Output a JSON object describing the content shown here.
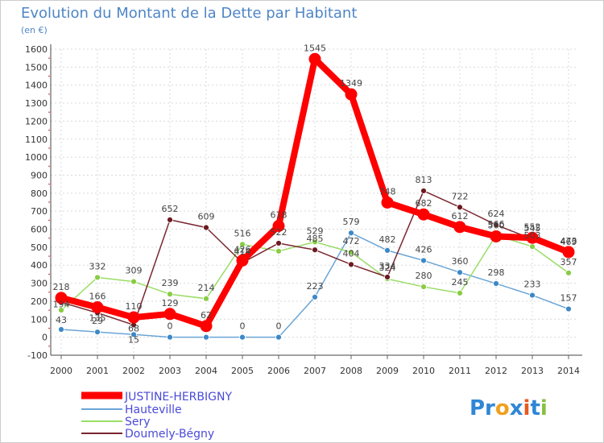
{
  "chart_data": {
    "type": "line",
    "title": "Evolution du Montant de la Dette par Habitant",
    "subtitle": "(en €)",
    "x": [
      "2000",
      "2001",
      "2002",
      "2003",
      "2004",
      "2005",
      "2006",
      "2007",
      "2008",
      "2009",
      "2010",
      "2011",
      "2012",
      "2013",
      "2014"
    ],
    "ylim": [
      -100,
      1600
    ],
    "yticks": [
      -100,
      0,
      100,
      200,
      300,
      400,
      500,
      600,
      700,
      800,
      900,
      1000,
      1100,
      1200,
      1300,
      1400,
      1500,
      1600
    ],
    "series": [
      {
        "name": "JUSTINE-HERBIGNY",
        "color": "#ff0000",
        "marker_color": "#ff0000",
        "values": [
          218,
          166,
          110,
          129,
          62,
          426,
          618,
          1545,
          1349,
          748,
          682,
          612,
          560,
          552,
          473
        ]
      },
      {
        "name": "Hauteville",
        "color": "#6aa5d6",
        "marker_color": "#3c88c8",
        "values": [
          43,
          29,
          15,
          0,
          0,
          0,
          0,
          223,
          579,
          482,
          426,
          360,
          298,
          233,
          157
        ]
      },
      {
        "name": "Sery",
        "color": "#99dd66",
        "marker_color": "#88cc44",
        "values": [
          150,
          332,
          309,
          239,
          214,
          516,
          478,
          529,
          472,
          324,
          280,
          245,
          566,
          503,
          357
        ]
      },
      {
        "name": "Doumely-Bégny",
        "color": "#7a2630",
        "marker_color": "#6a1a20",
        "values": [
          194,
          135,
          68,
          652,
          609,
          414,
          522,
          485,
          404,
          334,
          813,
          722,
          624,
          545,
          469
        ]
      }
    ],
    "point_labels": [
      {
        "series": 0,
        "i": 0,
        "text": "218"
      },
      {
        "series": 0,
        "i": 1,
        "text": "166"
      },
      {
        "series": 0,
        "i": 2,
        "text": "110"
      },
      {
        "series": 0,
        "i": 3,
        "text": "129"
      },
      {
        "series": 0,
        "i": 4,
        "text": "62"
      },
      {
        "series": 0,
        "i": 5,
        "text": "426"
      },
      {
        "series": 0,
        "i": 6,
        "text": "618"
      },
      {
        "series": 0,
        "i": 7,
        "text": "1545"
      },
      {
        "series": 0,
        "i": 8,
        "text": "1349"
      },
      {
        "series": 0,
        "i": 9,
        "text": "748"
      },
      {
        "series": 0,
        "i": 10,
        "text": "682"
      },
      {
        "series": 0,
        "i": 11,
        "text": "612"
      },
      {
        "series": 0,
        "i": 12,
        "text": "560"
      },
      {
        "series": 0,
        "i": 13,
        "text": "552"
      },
      {
        "series": 0,
        "i": 14,
        "text": "473"
      },
      {
        "series": 1,
        "i": 0,
        "text": "43"
      },
      {
        "series": 1,
        "i": 1,
        "text": "29"
      },
      {
        "series": 1,
        "i": 2,
        "text": "15"
      },
      {
        "series": 1,
        "i": 3,
        "text": "0"
      },
      {
        "series": 1,
        "i": 5,
        "text": "0"
      },
      {
        "series": 1,
        "i": 6,
        "text": "0"
      },
      {
        "series": 1,
        "i": 7,
        "text": "223"
      },
      {
        "series": 1,
        "i": 8,
        "text": "579"
      },
      {
        "series": 1,
        "i": 9,
        "text": "482"
      },
      {
        "series": 1,
        "i": 10,
        "text": "426"
      },
      {
        "series": 1,
        "i": 11,
        "text": "360"
      },
      {
        "series": 1,
        "i": 12,
        "text": "298"
      },
      {
        "series": 1,
        "i": 13,
        "text": "233"
      },
      {
        "series": 1,
        "i": 14,
        "text": "157"
      },
      {
        "series": 2,
        "i": 1,
        "text": "332"
      },
      {
        "series": 2,
        "i": 2,
        "text": "309"
      },
      {
        "series": 2,
        "i": 3,
        "text": "239"
      },
      {
        "series": 2,
        "i": 4,
        "text": "214"
      },
      {
        "series": 2,
        "i": 5,
        "text": "516"
      },
      {
        "series": 2,
        "i": 7,
        "text": "529"
      },
      {
        "series": 2,
        "i": 8,
        "text": "472"
      },
      {
        "series": 2,
        "i": 9,
        "text": "324"
      },
      {
        "series": 2,
        "i": 10,
        "text": "280"
      },
      {
        "series": 2,
        "i": 11,
        "text": "245"
      },
      {
        "series": 2,
        "i": 12,
        "text": "566"
      },
      {
        "series": 2,
        "i": 13,
        "text": "503"
      },
      {
        "series": 2,
        "i": 14,
        "text": "357"
      },
      {
        "series": 3,
        "i": 0,
        "text": "194"
      },
      {
        "series": 3,
        "i": 1,
        "text": "135"
      },
      {
        "series": 3,
        "i": 2,
        "text": "68"
      },
      {
        "series": 3,
        "i": 3,
        "text": "652"
      },
      {
        "series": 3,
        "i": 4,
        "text": "609"
      },
      {
        "series": 3,
        "i": 5,
        "text": "414"
      },
      {
        "series": 3,
        "i": 6,
        "text": "522"
      },
      {
        "series": 3,
        "i": 7,
        "text": "485"
      },
      {
        "series": 3,
        "i": 8,
        "text": "404"
      },
      {
        "series": 3,
        "i": 9,
        "text": "334"
      },
      {
        "series": 3,
        "i": 10,
        "text": "813"
      },
      {
        "series": 3,
        "i": 11,
        "text": "722"
      },
      {
        "series": 3,
        "i": 12,
        "text": "624"
      },
      {
        "series": 3,
        "i": 13,
        "text": "545"
      },
      {
        "series": 3,
        "i": 14,
        "text": "469"
      }
    ],
    "legend": [
      "JUSTINE-HERBIGNY",
      "Hauteville",
      "Sery",
      "Doumely-Bégny"
    ],
    "brand": "Proxiti"
  }
}
